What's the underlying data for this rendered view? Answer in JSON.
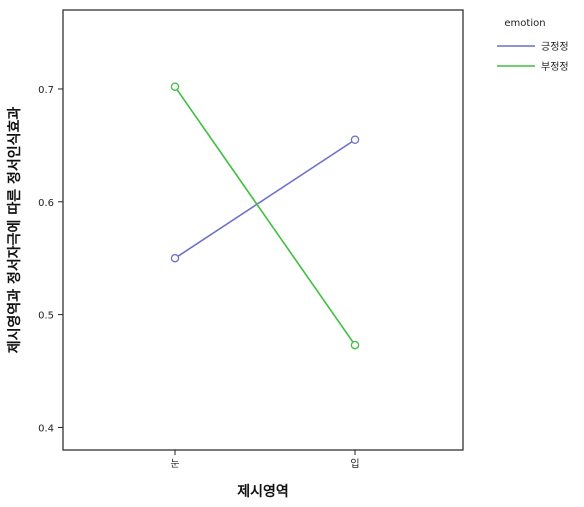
{
  "chart_data": {
    "type": "line",
    "title": "",
    "xlabel": "제시영역",
    "ylabel": "제시영역과 정서자극에 따른 정서인식효과",
    "categories": [
      "눈",
      "입"
    ],
    "ylim": [
      0.38,
      0.77
    ],
    "yticks": [
      "0.4",
      "0.5",
      "0.6",
      "0.7"
    ],
    "grid": false,
    "legend_title": "emotion",
    "legend_position": "top-right",
    "series": [
      {
        "name": "긍정정",
        "color": "#6c70c8",
        "values": [
          0.55,
          0.655
        ]
      },
      {
        "name": "부정정",
        "color": "#3fbf3f",
        "values": [
          0.702,
          0.473
        ]
      }
    ]
  }
}
